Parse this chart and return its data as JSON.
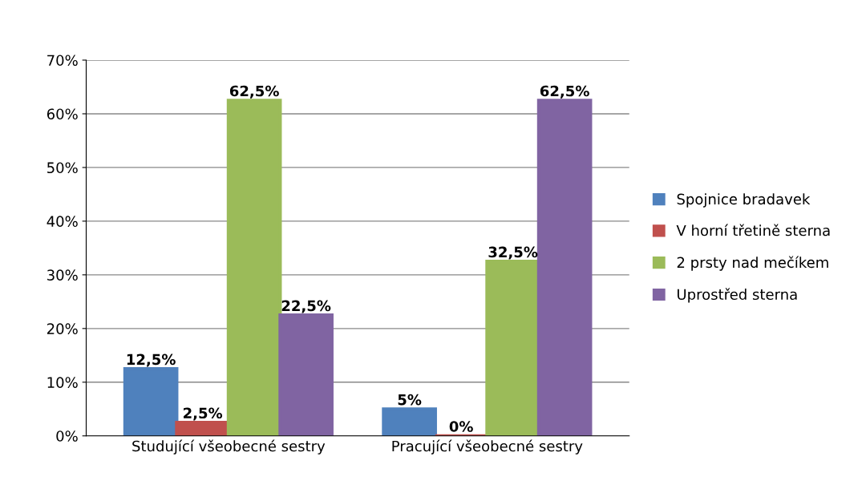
{
  "chart_data": {
    "type": "bar",
    "categories": [
      "Studující všeobecné sestry",
      "Pracující všeobecné sestry"
    ],
    "series": [
      {
        "name": "Spojnice bradavek",
        "color": "#4f81bd",
        "values": [
          12.5,
          5
        ],
        "value_labels": [
          "12,5%",
          "5%"
        ]
      },
      {
        "name": "V horní třetině sterna",
        "color": "#c0504d",
        "values": [
          2.5,
          0
        ],
        "value_labels": [
          "2,5%",
          "0%"
        ]
      },
      {
        "name": "2 prsty nad mečíkem",
        "color": "#9bbb59",
        "values": [
          62.5,
          32.5
        ],
        "value_labels": [
          "62,5%",
          "32,5%"
        ]
      },
      {
        "name": "Uprostřed sterna",
        "color": "#8064a2",
        "values": [
          22.5,
          62.5
        ],
        "value_labels": [
          "22,5%",
          "62,5%"
        ]
      }
    ],
    "ylim": [
      0,
      70
    ],
    "yticks": [
      {
        "value": 0,
        "label": "0%"
      },
      {
        "value": 10,
        "label": "10%"
      },
      {
        "value": 20,
        "label": "20%"
      },
      {
        "value": 30,
        "label": "30%"
      },
      {
        "value": 40,
        "label": "40%"
      },
      {
        "value": 50,
        "label": "50%"
      },
      {
        "value": 60,
        "label": "60%"
      },
      {
        "value": 70,
        "label": "70%"
      }
    ],
    "grid": "y",
    "legend": "right"
  }
}
